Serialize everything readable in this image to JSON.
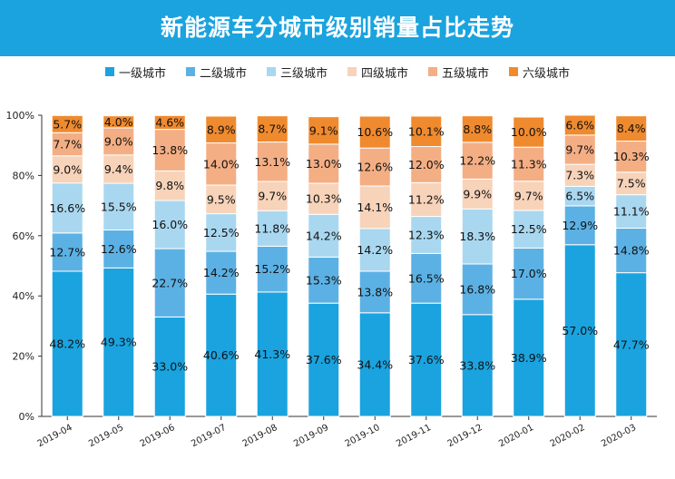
{
  "title": "新能源车分城市级别销量占比走势",
  "chart_data": {
    "type": "bar",
    "stacked": true,
    "title": "新能源车分城市级别销量占比走势",
    "categories": [
      "2019-04",
      "2019-05",
      "2019-06",
      "2019-07",
      "2019-08",
      "2019-09",
      "2019-10",
      "2019-11",
      "2019-12",
      "2020-01",
      "2020-02",
      "2020-03"
    ],
    "series": [
      {
        "name": "一级城市",
        "color": "#1aa3df",
        "values": [
          48.2,
          49.3,
          33.0,
          40.6,
          41.3,
          37.6,
          34.4,
          37.6,
          33.8,
          38.9,
          57.0,
          47.7
        ]
      },
      {
        "name": "二级城市",
        "color": "#5cb1e4",
        "values": [
          12.7,
          12.6,
          22.7,
          14.2,
          15.2,
          15.3,
          13.8,
          16.5,
          16.8,
          17.0,
          12.9,
          14.8
        ]
      },
      {
        "name": "三级城市",
        "color": "#a9d7f0",
        "values": [
          16.6,
          15.5,
          16.0,
          12.5,
          11.8,
          14.2,
          14.2,
          12.3,
          18.3,
          12.5,
          6.5,
          11.1
        ]
      },
      {
        "name": "四级城市",
        "color": "#f7d3b9",
        "values": [
          9.0,
          9.4,
          9.8,
          9.5,
          9.7,
          10.3,
          14.1,
          11.2,
          9.9,
          9.7,
          7.3,
          7.5
        ]
      },
      {
        "name": "五级城市",
        "color": "#f4ae84",
        "values": [
          7.7,
          9.0,
          13.8,
          14.0,
          13.1,
          13.0,
          12.6,
          12.0,
          12.2,
          11.3,
          9.7,
          10.3
        ]
      },
      {
        "name": "六级城市",
        "color": "#f08a2e",
        "values": [
          5.7,
          4.0,
          4.6,
          8.9,
          8.7,
          9.1,
          10.6,
          10.1,
          8.8,
          10.0,
          6.6,
          8.4
        ]
      }
    ],
    "yticks": [
      "0%",
      "20%",
      "40%",
      "60%",
      "80%",
      "100%"
    ],
    "ylim": [
      0,
      100
    ],
    "legend_position": "top",
    "grid": false
  }
}
